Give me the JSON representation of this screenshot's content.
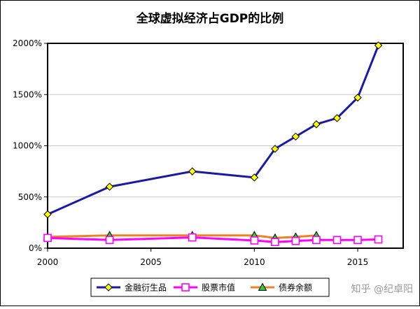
{
  "chart_data": {
    "type": "line",
    "title": "全球虚拟经济占GDP的比例",
    "xlabel": "",
    "ylabel": "",
    "xlim": [
      2000,
      2017.2
    ],
    "ylim": [
      0,
      2000
    ],
    "x_ticks": [
      2000,
      2005,
      2010,
      2015
    ],
    "y_ticks": [
      0,
      500,
      1000,
      1500,
      2000
    ],
    "y_tick_labels": [
      "0%",
      "500%",
      "1000%",
      "1500%",
      "2000%"
    ],
    "grid": "horizontal",
    "legend_position": "bottom",
    "series": [
      {
        "name": "金融衍生品",
        "color": "#1a1aa6",
        "marker": "diamond",
        "marker_fill": "#ffff00",
        "x": [
          2000,
          2003,
          2007,
          2010,
          2011,
          2012,
          2013,
          2014,
          2015,
          2016
        ],
        "y": [
          330,
          600,
          750,
          690,
          970,
          1090,
          1210,
          1270,
          1470,
          1980
        ]
      },
      {
        "name": "股票市值",
        "color": "#ff00ff",
        "marker": "square",
        "marker_fill": "#ffffff",
        "x": [
          2000,
          2003,
          2007,
          2010,
          2011,
          2012,
          2013,
          2014,
          2015,
          2016
        ],
        "y": [
          100,
          80,
          105,
          75,
          60,
          70,
          80,
          80,
          80,
          85
        ]
      },
      {
        "name": "债券余额",
        "color": "#f08020",
        "marker": "triangle",
        "marker_fill": "#33cc33",
        "x": [
          2000,
          2003,
          2007,
          2010,
          2011,
          2012,
          2013
        ],
        "y": [
          110,
          125,
          125,
          125,
          100,
          110,
          125
        ]
      }
    ]
  },
  "watermark": "知乎 @纪卓阳"
}
